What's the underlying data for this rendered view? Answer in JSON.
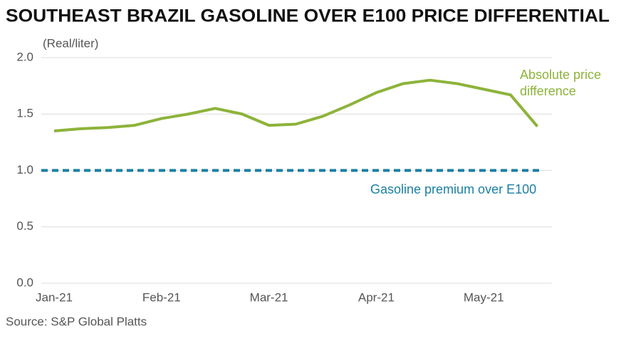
{
  "chart_data": {
    "type": "line",
    "title": "SOUTHEAST BRAZIL GASOLINE OVER E100 PRICE DIFFERENTIAL",
    "y_axis_label": "(Real/liter)",
    "source": "Source: S&P Global Platts",
    "categories": [
      "Jan-21",
      null,
      null,
      null,
      "Feb-21",
      null,
      null,
      null,
      "Mar-21",
      null,
      null,
      null,
      "Apr-21",
      null,
      null,
      null,
      "May-21",
      null,
      null
    ],
    "series": [
      {
        "name": "Absolute price difference",
        "color": "#8db33a",
        "values": [
          1.35,
          1.37,
          1.38,
          1.4,
          1.46,
          1.5,
          1.55,
          1.5,
          1.4,
          1.41,
          1.48,
          1.58,
          1.69,
          1.77,
          1.8,
          1.77,
          1.72,
          1.67,
          1.39
        ]
      }
    ],
    "reference_line": {
      "name": "Gasoline premium over E100",
      "value": 1.0,
      "color": "#1a7fa3",
      "style": "dashed"
    },
    "ylim": [
      0,
      2
    ],
    "yticks": [
      {
        "value": 0,
        "label": "0.0"
      },
      {
        "value": 0.5,
        "label": "0.5"
      },
      {
        "value": 1,
        "label": "1.0"
      },
      {
        "value": 1.5,
        "label": "1.5"
      },
      {
        "value": 2,
        "label": "2.0"
      }
    ],
    "grid": true
  }
}
